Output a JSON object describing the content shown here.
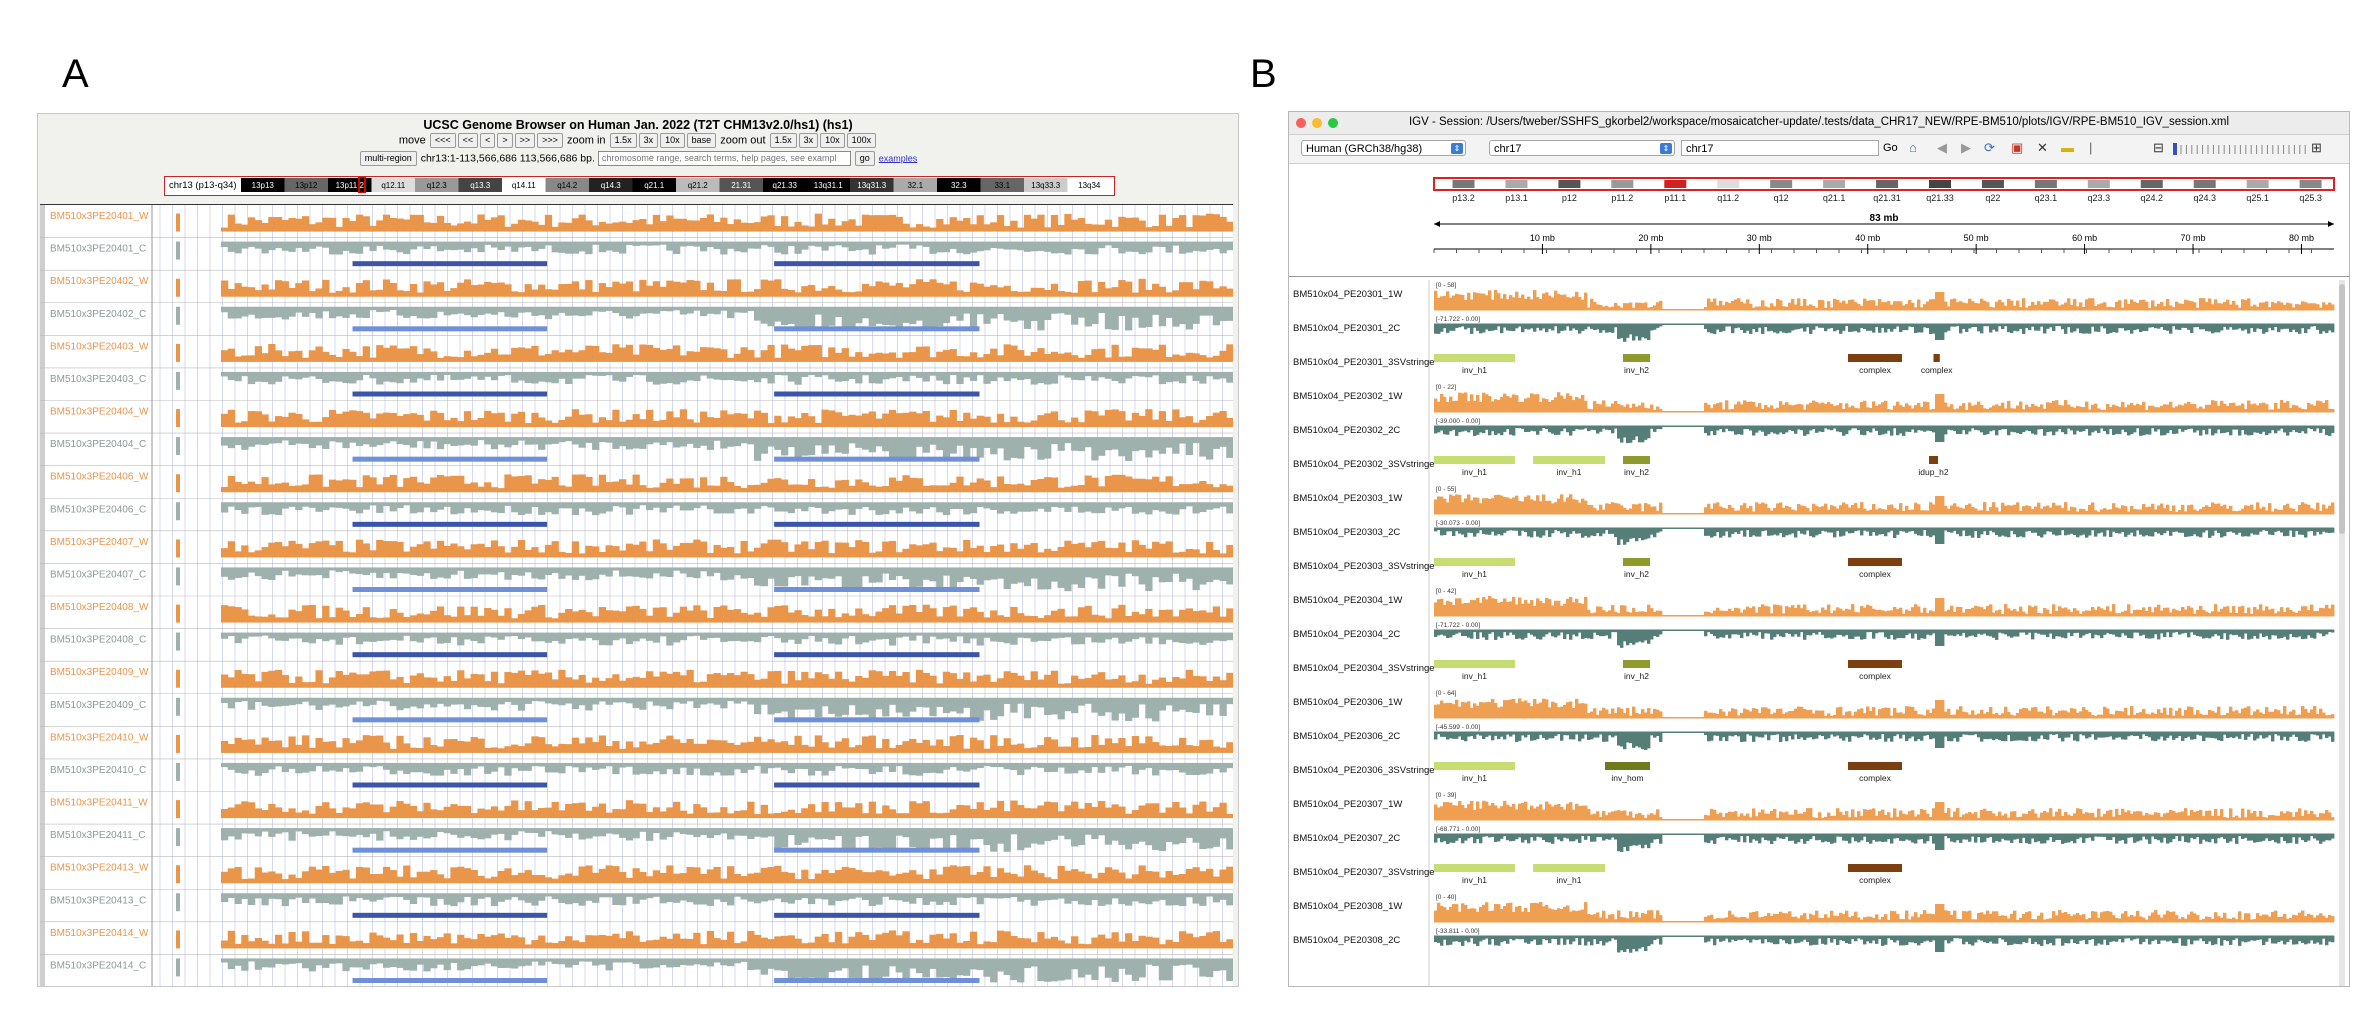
{
  "panels": {
    "a_label": "A",
    "b_label": "B"
  },
  "ucsc": {
    "title": "UCSC Genome Browser on Human Jan. 2022 (T2T CHM13v2.0/hs1) (hs1)",
    "move_label": "move",
    "move_buttons": [
      "<<<",
      "<<",
      "<",
      ">",
      ">>",
      ">>>"
    ],
    "zoom_in_label": "zoom in",
    "zoom_in_buttons": [
      "1.5x",
      "3x",
      "10x",
      "base"
    ],
    "zoom_out_label": "zoom out",
    "zoom_out_buttons": [
      "1.5x",
      "3x",
      "10x",
      "100x"
    ],
    "multi_region_button": "multi-region",
    "position": "chr13:1-113,566,686",
    "size": "113,566,686 bp.",
    "search_placeholder": "chromosome range, search terms, help pages, see exampl",
    "go_button": "go",
    "examples_link": "examples",
    "ideogram_label": "chr13 (p13-q34)",
    "bands": [
      "13p13",
      "13p12",
      "13p11.2",
      "q12.11",
      "q12.3",
      "q13.3",
      "q14.11",
      "q14.2",
      "q14.3",
      "q21.1",
      "q21.2",
      "21.31",
      "q21.33",
      "13q31.1",
      "13q31.3",
      "32.1",
      "32.3",
      "33.1",
      "13q33.3",
      "13q34"
    ],
    "tracks": [
      "BM510x3PE20401_W",
      "BM510x3PE20401_C",
      "BM510x3PE20402_W",
      "BM510x3PE20402_C",
      "BM510x3PE20403_W",
      "BM510x3PE20403_C",
      "BM510x3PE20404_W",
      "BM510x3PE20404_C",
      "BM510x3PE20406_W",
      "BM510x3PE20406_C",
      "BM510x3PE20407_W",
      "BM510x3PE20407_C",
      "BM510x3PE20408_W",
      "BM510x3PE20408_C",
      "BM510x3PE20409_W",
      "BM510x3PE20409_C",
      "BM510x3PE20410_W",
      "BM510x3PE20410_C",
      "BM510x3PE20411_W",
      "BM510x3PE20411_C",
      "BM510x3PE20413_W",
      "BM510x3PE20413_C",
      "BM510x3PE20414_W",
      "BM510x3PE20414_C"
    ],
    "colors": {
      "watson": "#e9954a",
      "crick": "#9fb1ad",
      "segment": "#3b55a8",
      "segment_light": "#6f8fd6"
    }
  },
  "igv": {
    "window_title": "IGV - Session: /Users/tweber/SSHFS_gkorbel2/workspace/mosaicatcher-update/.tests/data_CHR17_NEW/RPE-BM510/plots/IGV/RPE-BM510_IGV_session.xml",
    "genome": "Human (GRCh38/hg38)",
    "chromosome": "chr17",
    "locus": "chr17",
    "go_button": "Go",
    "ruler_span": "83 mb",
    "ruler_ticks": [
      "10 mb",
      "20 mb",
      "30 mb",
      "40 mb",
      "50 mb",
      "60 mb",
      "70 mb",
      "80 mb"
    ],
    "bands": [
      "p13.2",
      "p13.1",
      "p12",
      "p11.2",
      "p11.1",
      "q11.2",
      "q12",
      "q21.1",
      "q21.31",
      "q21.33",
      "q22",
      "q23.1",
      "q23.3",
      "q24.2",
      "q24.3",
      "q25.1",
      "q25.3"
    ],
    "tracks": [
      {
        "name": "BM510x04_PE20301_1W",
        "kind": "W",
        "range": "[0 - 58]"
      },
      {
        "name": "BM510x04_PE20301_2C",
        "kind": "C",
        "range": "[-71.722 - 0.00]"
      },
      {
        "name": "BM510x04_PE20301_3SVstringe",
        "kind": "SV",
        "labels": [
          "inv_h1",
          "inv_h2",
          "complex",
          "complex"
        ]
      },
      {
        "name": "BM510x04_PE20302_1W",
        "kind": "W",
        "range": "[0 - 22]"
      },
      {
        "name": "BM510x04_PE20302_2C",
        "kind": "C",
        "range": "[-39.000 - 0.00]"
      },
      {
        "name": "BM510x04_PE20302_3SVstringe",
        "kind": "SV",
        "labels": [
          "inv_h1",
          "inv_h1",
          "inv_h2",
          "idup_h2"
        ]
      },
      {
        "name": "BM510x04_PE20303_1W",
        "kind": "W",
        "range": "[0 - 55]"
      },
      {
        "name": "BM510x04_PE20303_2C",
        "kind": "C",
        "range": "[-30.073 - 0.00]"
      },
      {
        "name": "BM510x04_PE20303_3SVstringe",
        "kind": "SV",
        "labels": [
          "inv_h1",
          "inv_h2",
          "complex"
        ]
      },
      {
        "name": "BM510x04_PE20304_1W",
        "kind": "W",
        "range": "[0 - 42]"
      },
      {
        "name": "BM510x04_PE20304_2C",
        "kind": "C",
        "range": "[-71.722 - 0.00]"
      },
      {
        "name": "BM510x04_PE20304_3SVstringe",
        "kind": "SV",
        "labels": [
          "inv_h1",
          "inv_h2",
          "complex"
        ]
      },
      {
        "name": "BM510x04_PE20306_1W",
        "kind": "W",
        "range": "[0 - 64]"
      },
      {
        "name": "BM510x04_PE20306_2C",
        "kind": "C",
        "range": "[-45.599 - 0.00]"
      },
      {
        "name": "BM510x04_PE20306_3SVstringe",
        "kind": "SV",
        "labels": [
          "inv_h1",
          "inv_hom",
          "complex"
        ]
      },
      {
        "name": "BM510x04_PE20307_1W",
        "kind": "W",
        "range": "[0 - 39]"
      },
      {
        "name": "BM510x04_PE20307_2C",
        "kind": "C",
        "range": "[-68.771 - 0.00]"
      },
      {
        "name": "BM510x04_PE20307_3SVstringe",
        "kind": "SV",
        "labels": [
          "inv_h1",
          "inv_h1",
          "complex"
        ]
      },
      {
        "name": "BM510x04_PE20308_1W",
        "kind": "W",
        "range": "[0 - 40]"
      },
      {
        "name": "BM510x04_PE20308_2C",
        "kind": "C",
        "range": "[-33.811 - 0.00]"
      }
    ],
    "colors": {
      "watson": "#ef9f52",
      "crick": "#557e78",
      "inv_h1": "#c8dc74",
      "inv_h2": "#8e9a2c",
      "inv_hom": "#6f7a1c",
      "complex": "#7b3f10"
    }
  }
}
